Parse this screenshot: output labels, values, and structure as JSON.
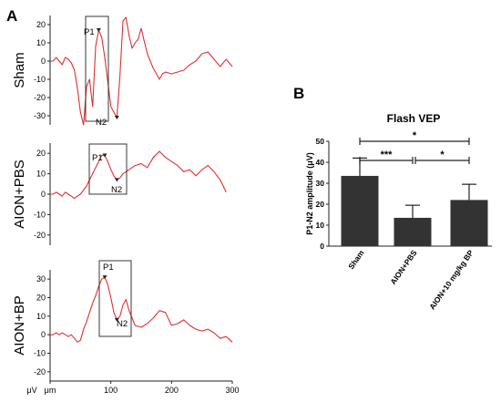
{
  "panel_a_label": "A",
  "panel_b_label": "B",
  "chart_data": [
    {
      "type": "line",
      "panel": "A",
      "group_label": "Sham",
      "yticks": [
        20,
        10,
        0,
        -10,
        -20,
        -30
      ],
      "ylim": [
        -35,
        25
      ],
      "xlim": [
        0,
        300
      ],
      "series": [
        {
          "color": "#e03030",
          "x": [
            0,
            5,
            10,
            15,
            20,
            25,
            30,
            35,
            40,
            45,
            50,
            55,
            60,
            65,
            70,
            75,
            80,
            85,
            90,
            95,
            100,
            105,
            110,
            115,
            120,
            125,
            130,
            135,
            140,
            145,
            150,
            155,
            160,
            165,
            170,
            175,
            180,
            185,
            190,
            200,
            210,
            220,
            230,
            240,
            250,
            260,
            270,
            280,
            290,
            300
          ],
          "y": [
            0,
            0,
            2,
            0,
            -2,
            2,
            1,
            -1,
            -5,
            -15,
            -28,
            -35,
            -14,
            -10,
            -25,
            8,
            17,
            13,
            2,
            -11,
            -25,
            -28,
            -31,
            -8,
            22,
            24,
            14,
            7,
            10,
            12,
            18,
            11,
            4,
            0,
            -4,
            -7,
            -10,
            -7,
            -6,
            -7,
            -6,
            -5,
            -2,
            0,
            4,
            5,
            1,
            -3,
            1,
            -3
          ]
        }
      ],
      "markers": [
        {
          "label": "P1",
          "x": 80,
          "y": 17
        },
        {
          "label": "N2",
          "x": 110,
          "y": -31
        }
      ]
    },
    {
      "type": "line",
      "panel": "A",
      "group_label": "AION+PBS",
      "yticks": [
        20,
        10,
        0,
        -10,
        -20
      ],
      "ylim": [
        -25,
        25
      ],
      "xlim": [
        0,
        300
      ],
      "series": [
        {
          "color": "#e03030",
          "x": [
            0,
            5,
            10,
            15,
            20,
            25,
            30,
            35,
            40,
            45,
            50,
            55,
            60,
            65,
            70,
            75,
            80,
            85,
            90,
            95,
            100,
            105,
            110,
            115,
            120,
            125,
            130,
            140,
            150,
            160,
            170,
            180,
            190,
            200,
            210,
            220,
            230,
            240,
            250,
            260,
            270,
            280,
            290
          ],
          "y": [
            0,
            0,
            1,
            0,
            -1,
            1,
            0,
            -1,
            -2,
            -1,
            0,
            2,
            4,
            7,
            10,
            13,
            16,
            19,
            19,
            16,
            12,
            9,
            7,
            8,
            10,
            11,
            12,
            14,
            15,
            13,
            18,
            21,
            18,
            16,
            14,
            11,
            12,
            9,
            12,
            14,
            11,
            7,
            1
          ]
        }
      ],
      "markers": [
        {
          "label": "P1",
          "x": 90,
          "y": 19
        },
        {
          "label": "N2",
          "x": 110,
          "y": 7
        }
      ]
    },
    {
      "type": "line",
      "panel": "A",
      "group_label": "AION+BP",
      "yticks": [
        30,
        20,
        10,
        0,
        -10,
        -20
      ],
      "ylim": [
        -25,
        35
      ],
      "xlim": [
        0,
        300
      ],
      "xticks": [
        0,
        100,
        200,
        300
      ],
      "x_unit": "μm",
      "y_unit": "μV",
      "series": [
        {
          "color": "#e03030",
          "x": [
            0,
            5,
            10,
            15,
            20,
            25,
            30,
            35,
            40,
            45,
            50,
            55,
            60,
            65,
            70,
            75,
            80,
            85,
            90,
            95,
            100,
            105,
            110,
            115,
            120,
            125,
            130,
            140,
            150,
            160,
            170,
            180,
            190,
            200,
            210,
            220,
            230,
            240,
            250,
            260,
            270,
            280,
            290,
            300
          ],
          "y": [
            0,
            0,
            1,
            0,
            1,
            0,
            -1,
            0,
            -2,
            -4,
            -3,
            3,
            7,
            12,
            17,
            21,
            26,
            30,
            31,
            27,
            20,
            12,
            8,
            10,
            16,
            19,
            13,
            5,
            4,
            6,
            9,
            13,
            12,
            5,
            6,
            8,
            5,
            3,
            2,
            3,
            1,
            -2,
            -1,
            -4
          ]
        }
      ],
      "markers": [
        {
          "label": "P1",
          "x": 90,
          "y": 31
        },
        {
          "label": "N2",
          "x": 110,
          "y": 8
        }
      ]
    },
    {
      "type": "bar",
      "panel": "B",
      "title": "Flash VEP",
      "ylabel": "P1-N2 amplitude (μV)",
      "categories": [
        "Sham",
        "AION+PBS",
        "AION+10 mg/kg BP"
      ],
      "values": [
        33.5,
        13.5,
        22
      ],
      "errors": [
        8.5,
        6,
        7.5
      ],
      "ylim": [
        0,
        50
      ],
      "yticks": [
        0,
        10,
        20,
        30,
        40,
        50
      ],
      "bar_color": "#333333",
      "significance": [
        {
          "from": 0,
          "to": 1,
          "label": "***"
        },
        {
          "from": 1,
          "to": 2,
          "label": "*"
        },
        {
          "from": 0,
          "to": 2,
          "label": "*"
        }
      ]
    }
  ]
}
